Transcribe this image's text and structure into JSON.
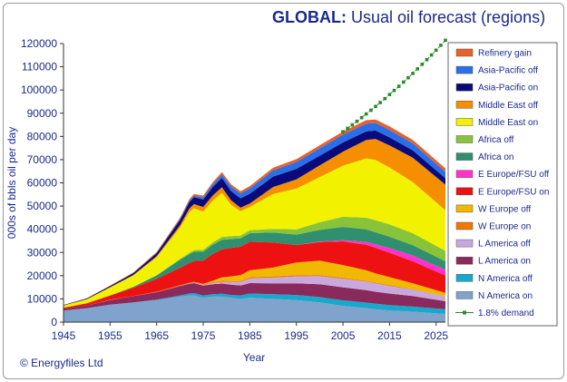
{
  "header": {
    "title_bold": "GLOBAL:",
    "title_rest": " Usual oil forecast (regions)"
  },
  "footer": {
    "copyright": "© Energyfiles Ltd"
  },
  "chart_data": {
    "type": "area",
    "stacked": true,
    "xlabel": "Year",
    "ylabel": "000s of bbls oil per day",
    "xlim": [
      1945,
      2027
    ],
    "ylim": [
      0,
      120000
    ],
    "xticks": [
      1945,
      1955,
      1965,
      1975,
      1985,
      1995,
      2005,
      2015,
      2025
    ],
    "yticks": [
      0,
      10000,
      20000,
      30000,
      40000,
      50000,
      60000,
      70000,
      80000,
      90000,
      100000,
      110000,
      120000
    ],
    "x": [
      1945,
      1950,
      1955,
      1960,
      1965,
      1970,
      1972,
      1973,
      1975,
      1977,
      1979,
      1981,
      1983,
      1985,
      1990,
      1995,
      2000,
      2005,
      2010,
      2012,
      2015,
      2020,
      2027
    ],
    "series": [
      {
        "name": "N America on",
        "color": "#7fa3cc",
        "values": [
          5000,
          6000,
          7500,
          8500,
          9500,
          11000,
          11500,
          11500,
          10500,
          11000,
          11000,
          10500,
          10000,
          10500,
          10000,
          9500,
          8500,
          7000,
          6000,
          5500,
          5000,
          4500,
          3500
        ]
      },
      {
        "name": "N America off",
        "color": "#17a8cc",
        "values": [
          0,
          0,
          0,
          0,
          200,
          500,
          800,
          1000,
          1000,
          1000,
          1200,
          1200,
          1500,
          1800,
          2000,
          2200,
          2300,
          2400,
          2400,
          2400,
          2300,
          2200,
          2000
        ]
      },
      {
        "name": "L America on",
        "color": "#8a2a5c",
        "values": [
          700,
          1200,
          2000,
          2700,
          3200,
          4000,
          4200,
          4300,
          4200,
          4300,
          4400,
          4400,
          4300,
          4500,
          4700,
          5000,
          5500,
          5600,
          5400,
          5200,
          5000,
          4500,
          3500
        ]
      },
      {
        "name": "L America off",
        "color": "#c9a8e0",
        "values": [
          0,
          0,
          0,
          0,
          0,
          100,
          150,
          200,
          300,
          500,
          800,
          1200,
          1500,
          2000,
          2500,
          3000,
          3500,
          3700,
          3700,
          3600,
          3300,
          2800,
          2000
        ]
      },
      {
        "name": "W Europe on",
        "color": "#f07800",
        "values": [
          0,
          0,
          100,
          100,
          200,
          300,
          300,
          300,
          300,
          300,
          400,
          400,
          400,
          500,
          500,
          500,
          500,
          400,
          300,
          300,
          300,
          200,
          100
        ]
      },
      {
        "name": "W Europe off",
        "color": "#f0b800",
        "values": [
          0,
          0,
          0,
          0,
          0,
          0,
          0,
          50,
          200,
          700,
          1500,
          2000,
          2500,
          3000,
          3800,
          5500,
          6200,
          5500,
          4500,
          4000,
          3500,
          2500,
          1500
        ]
      },
      {
        "name": "E Europe/FSU on",
        "color": "#ee1111",
        "values": [
          500,
          900,
          1800,
          3500,
          5500,
          7500,
          8500,
          9000,
          10000,
          11500,
          12000,
          12300,
          12300,
          12300,
          10800,
          7500,
          8000,
          10200,
          11000,
          11000,
          10500,
          9500,
          7500
        ]
      },
      {
        "name": "E Europe/FSU off",
        "color": "#ff33cc",
        "values": [
          0,
          0,
          0,
          0,
          0,
          0,
          0,
          0,
          0,
          0,
          0,
          0,
          0,
          0,
          0,
          0,
          200,
          500,
          1200,
          1500,
          2000,
          2500,
          2500
        ]
      },
      {
        "name": "Africa on",
        "color": "#2f8f6f",
        "values": [
          0,
          0,
          100,
          400,
          1500,
          3500,
          3800,
          4000,
          3800,
          4000,
          4200,
          3800,
          3600,
          3700,
          4300,
          4500,
          5000,
          5700,
          5500,
          5200,
          4900,
          4400,
          3600
        ]
      },
      {
        "name": "Africa off",
        "color": "#88c33a",
        "values": [
          0,
          0,
          0,
          0,
          100,
          300,
          600,
          700,
          800,
          1000,
          1200,
          1200,
          1200,
          1300,
          1600,
          2300,
          3300,
          4400,
          5000,
          5200,
          5300,
          5200,
          4500
        ]
      },
      {
        "name": "Middle East on",
        "color": "#f2f200",
        "values": [
          1000,
          1800,
          3500,
          5000,
          7800,
          13500,
          17500,
          18000,
          16500,
          18000,
          19000,
          13500,
          10500,
          10000,
          15000,
          17500,
          19500,
          22000,
          25500,
          26000,
          24500,
          22000,
          17500
        ]
      },
      {
        "name": "Middle East off",
        "color": "#f58e00",
        "values": [
          0,
          0,
          0,
          100,
          400,
          1000,
          1500,
          1800,
          2000,
          2200,
          2400,
          2000,
          1500,
          1500,
          3000,
          4000,
          5000,
          6000,
          8000,
          9000,
          9500,
          10500,
          11000
        ]
      },
      {
        "name": "Asia-Pacific on",
        "color": "#0a0a7a",
        "values": [
          200,
          300,
          500,
          800,
          1300,
          2300,
          2800,
          3000,
          3200,
          3600,
          4000,
          4000,
          4000,
          4200,
          4500,
          4500,
          4200,
          4000,
          3700,
          3600,
          3500,
          3200,
          2800
        ]
      },
      {
        "name": "Asia-Pacific off",
        "color": "#2b6fe8",
        "values": [
          0,
          0,
          0,
          0,
          100,
          300,
          500,
          600,
          900,
          1200,
          1500,
          1800,
          2100,
          2300,
          2700,
          3000,
          3200,
          3300,
          3300,
          3300,
          3200,
          3000,
          2700
        ]
      },
      {
        "name": "Refinery gain",
        "color": "#e8602a",
        "values": [
          0,
          100,
          200,
          300,
          400,
          600,
          700,
          800,
          800,
          900,
          1000,
          1000,
          1000,
          1000,
          1100,
          1200,
          1300,
          1400,
          1500,
          1500,
          1500,
          1500,
          1500
        ]
      }
    ],
    "demand": {
      "name": "1.8% demand",
      "color": "#2a8a2a",
      "start_year": 2005,
      "start_value": 82000,
      "growth_rate": 0.018,
      "end_year": 2027
    }
  }
}
